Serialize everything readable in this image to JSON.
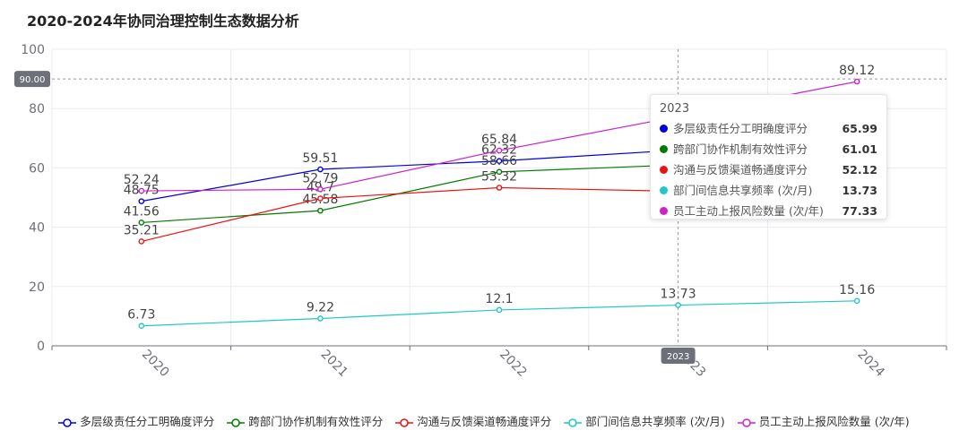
{
  "chart_data": {
    "type": "line",
    "title": "2020-2024年协同治理控制生态数据分析",
    "categories": [
      "2020",
      "2021",
      "2022",
      "2023",
      "2024"
    ],
    "ylim": [
      0,
      100
    ],
    "yticks": [
      0,
      20,
      40,
      60,
      80,
      100
    ],
    "ylabel": "",
    "xlabel": "",
    "grid": true,
    "legend_position": "bottom",
    "series": [
      {
        "name": "多层级责任分工明确度评分",
        "color": "#0000dd",
        "values": [
          48.75,
          59.51,
          62.32,
          65.99,
          null
        ],
        "labels": [
          "48.75",
          "59.51",
          "62.32",
          "",
          ""
        ]
      },
      {
        "name": "跨部门协作机制有效性评分",
        "color": "#007a00",
        "values": [
          41.56,
          45.58,
          58.66,
          61.01,
          null
        ],
        "labels": [
          "41.56",
          "45.58",
          "58.66",
          "",
          ""
        ]
      },
      {
        "name": "沟通与反馈渠道畅通度评分",
        "color": "#ee1111",
        "values": [
          35.21,
          49.7,
          53.32,
          52.12,
          null
        ],
        "labels": [
          "35.21",
          "49.7",
          "53.32",
          "",
          ""
        ]
      },
      {
        "name": "部门间信息共享频率 (次/月)",
        "color": "#1fc7c7",
        "values": [
          6.73,
          9.22,
          12.1,
          13.73,
          15.16
        ],
        "labels": [
          "6.73",
          "9.22",
          "12.1",
          "13.73",
          "15.16"
        ]
      },
      {
        "name": "员工主动上报风险数量 (次/年)",
        "color": "#cc22cc",
        "values": [
          52.24,
          52.79,
          65.84,
          77.33,
          89.12
        ],
        "labels": [
          "52.24",
          "52.79",
          "65.84",
          "",
          "89.12"
        ]
      }
    ],
    "crosshair": {
      "y_value": 90.0,
      "y_label": "90.00",
      "x_category": "2023",
      "x_label": "2023"
    },
    "tooltip": {
      "title": "2023",
      "rows": [
        {
          "name": "多层级责任分工明确度评分",
          "value": "65.99",
          "color": "#0000dd"
        },
        {
          "name": "跨部门协作机制有效性评分",
          "value": "61.01",
          "color": "#007a00"
        },
        {
          "name": "沟通与反馈渠道畅通度评分",
          "value": "52.12",
          "color": "#ee1111"
        },
        {
          "name": "部门间信息共享频率 (次/月)",
          "value": "13.73",
          "color": "#1fc7c7"
        },
        {
          "name": "员工主动上报风险数量 (次/年)",
          "value": "77.33",
          "color": "#cc22cc"
        }
      ]
    }
  }
}
